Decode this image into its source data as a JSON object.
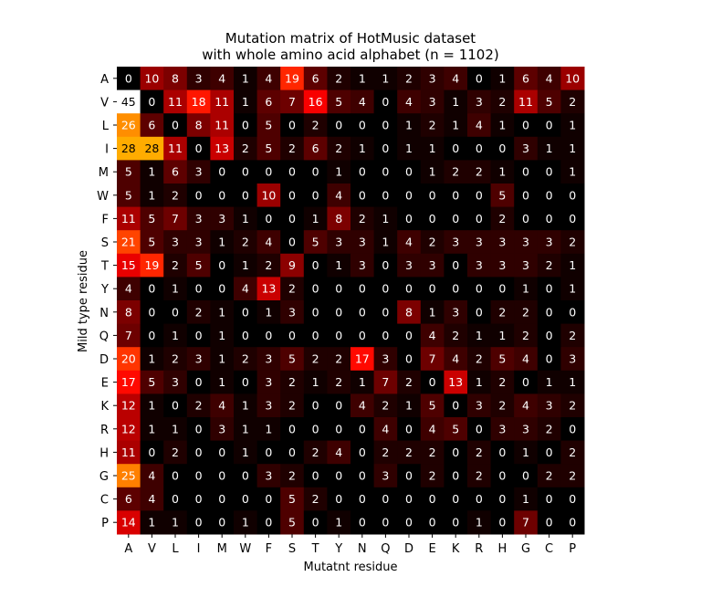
{
  "chart_data": {
    "type": "heatmap",
    "title_line1": "Mutation matrix of HotMusic dataset",
    "title_line2": "with whole amino acid alphabet (n = 1102)",
    "xlabel": "Mutatnt residue",
    "ylabel": "Mild type residue",
    "x_categories": [
      "A",
      "V",
      "L",
      "I",
      "M",
      "W",
      "F",
      "S",
      "T",
      "Y",
      "N",
      "Q",
      "D",
      "E",
      "K",
      "R",
      "H",
      "G",
      "C",
      "P"
    ],
    "y_categories": [
      "A",
      "V",
      "L",
      "I",
      "M",
      "W",
      "F",
      "S",
      "T",
      "Y",
      "N",
      "Q",
      "D",
      "E",
      "K",
      "R",
      "H",
      "G",
      "C",
      "P"
    ],
    "colormap": "hot",
    "value_range": [
      0,
      45
    ],
    "values": [
      [
        0,
        10,
        8,
        3,
        4,
        1,
        4,
        19,
        6,
        2,
        1,
        1,
        2,
        3,
        4,
        0,
        1,
        6,
        4,
        10
      ],
      [
        45,
        0,
        11,
        18,
        11,
        1,
        6,
        7,
        16,
        5,
        4,
        0,
        4,
        3,
        1,
        3,
        2,
        11,
        5,
        2
      ],
      [
        26,
        6,
        0,
        8,
        11,
        0,
        5,
        0,
        2,
        0,
        0,
        0,
        1,
        2,
        1,
        4,
        1,
        0,
        0,
        1
      ],
      [
        28,
        28,
        11,
        0,
        13,
        2,
        5,
        2,
        6,
        2,
        1,
        0,
        1,
        1,
        0,
        0,
        0,
        3,
        1,
        1
      ],
      [
        5,
        1,
        6,
        3,
        0,
        0,
        0,
        0,
        0,
        1,
        0,
        0,
        0,
        1,
        2,
        2,
        1,
        0,
        0,
        1
      ],
      [
        5,
        1,
        2,
        0,
        0,
        0,
        10,
        0,
        0,
        4,
        0,
        0,
        0,
        0,
        0,
        0,
        5,
        0,
        0,
        0
      ],
      [
        11,
        5,
        7,
        3,
        3,
        1,
        0,
        0,
        1,
        8,
        2,
        1,
        0,
        0,
        0,
        0,
        2,
        0,
        0,
        0
      ],
      [
        21,
        5,
        3,
        3,
        1,
        2,
        4,
        0,
        5,
        3,
        3,
        1,
        4,
        2,
        3,
        3,
        3,
        3,
        3,
        2
      ],
      [
        15,
        19,
        2,
        5,
        0,
        1,
        2,
        9,
        0,
        1,
        3,
        0,
        3,
        3,
        0,
        3,
        3,
        3,
        2,
        1
      ],
      [
        4,
        0,
        1,
        0,
        0,
        4,
        13,
        2,
        0,
        0,
        0,
        0,
        0,
        0,
        0,
        0,
        0,
        1,
        0,
        1
      ],
      [
        8,
        0,
        0,
        2,
        1,
        0,
        1,
        3,
        0,
        0,
        0,
        0,
        8,
        1,
        3,
        0,
        2,
        2,
        0,
        0
      ],
      [
        7,
        0,
        1,
        0,
        1,
        0,
        0,
        0,
        0,
        0,
        0,
        0,
        0,
        4,
        2,
        1,
        1,
        2,
        0,
        2
      ],
      [
        20,
        1,
        2,
        3,
        1,
        2,
        3,
        5,
        2,
        2,
        17,
        3,
        0,
        7,
        4,
        2,
        5,
        4,
        0,
        3
      ],
      [
        17,
        5,
        3,
        0,
        1,
        0,
        3,
        2,
        1,
        2,
        1,
        7,
        2,
        0,
        13,
        1,
        2,
        0,
        1,
        1
      ],
      [
        12,
        1,
        0,
        2,
        4,
        1,
        3,
        2,
        0,
        0,
        4,
        2,
        1,
        5,
        0,
        3,
        2,
        4,
        3,
        2
      ],
      [
        12,
        1,
        1,
        0,
        3,
        1,
        1,
        0,
        0,
        0,
        0,
        4,
        0,
        4,
        5,
        0,
        3,
        3,
        2,
        0
      ],
      [
        11,
        0,
        2,
        0,
        0,
        1,
        0,
        0,
        2,
        4,
        0,
        2,
        2,
        2,
        0,
        2,
        0,
        1,
        0,
        2
      ],
      [
        25,
        4,
        0,
        0,
        0,
        0,
        3,
        2,
        0,
        0,
        0,
        3,
        0,
        2,
        0,
        2,
        0,
        0,
        2,
        2
      ],
      [
        6,
        4,
        0,
        0,
        0,
        0,
        0,
        5,
        2,
        0,
        0,
        0,
        0,
        0,
        0,
        0,
        0,
        1,
        0,
        0
      ],
      [
        14,
        1,
        1,
        0,
        0,
        1,
        0,
        5,
        0,
        1,
        0,
        0,
        0,
        0,
        0,
        1,
        0,
        7,
        0,
        0
      ]
    ]
  }
}
